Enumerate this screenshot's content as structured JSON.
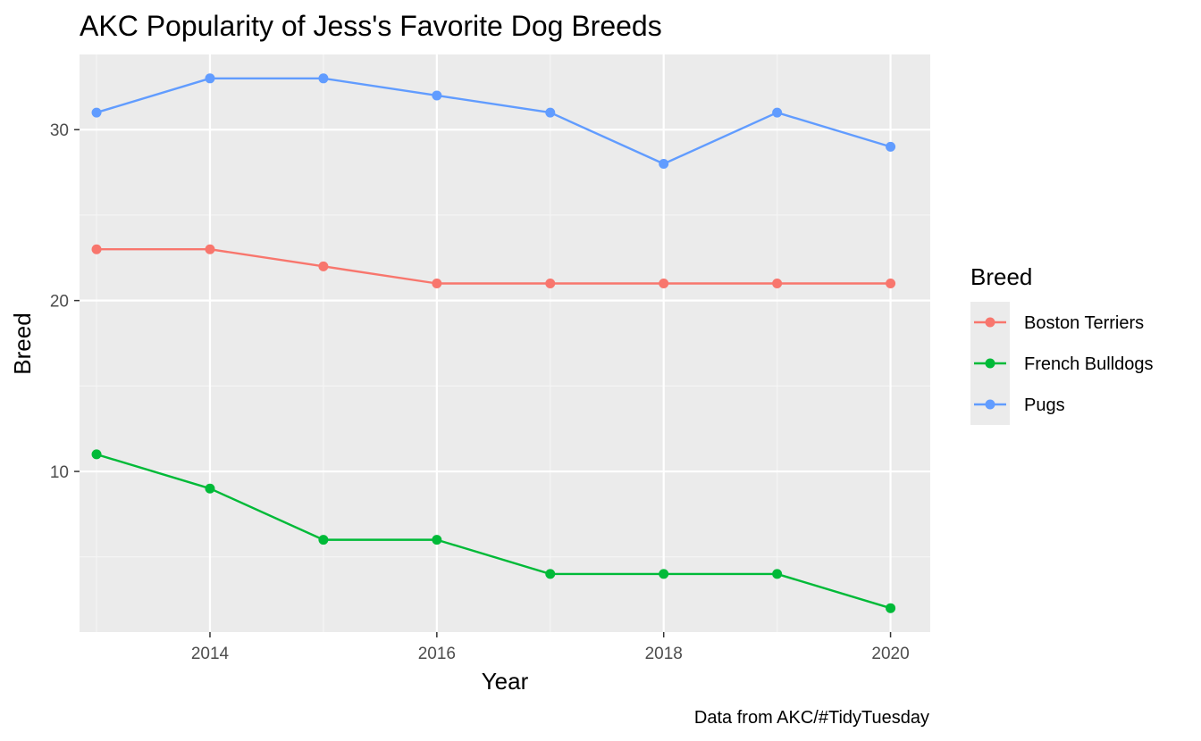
{
  "chart_data": {
    "type": "line",
    "title": "AKC Popularity of Jess's Favorite Dog Breeds",
    "xlabel": "Year",
    "ylabel": "Breed",
    "caption": "Data from AKC/#TidyTuesday",
    "x": [
      2013,
      2014,
      2015,
      2016,
      2017,
      2018,
      2019,
      2020
    ],
    "xlim": [
      2012.85,
      2020.35
    ],
    "ylim": [
      0.6,
      34.4
    ],
    "x_ticks": [
      2014,
      2016,
      2018,
      2020
    ],
    "y_ticks": [
      10,
      20,
      30
    ],
    "x_tick_labels": [
      "2014",
      "2016",
      "2018",
      "2020"
    ],
    "y_tick_labels": [
      "10",
      "20",
      "30"
    ],
    "grid": true,
    "legend": {
      "title": "Breed",
      "placement": "right"
    },
    "series": [
      {
        "name": "Boston Terriers",
        "color": "#F8766D",
        "values": [
          23,
          23,
          22,
          21,
          21,
          21,
          21,
          21
        ]
      },
      {
        "name": "French Bulldogs",
        "color": "#00BA38",
        "values": [
          11,
          9,
          6,
          6,
          4,
          4,
          4,
          2
        ]
      },
      {
        "name": "Pugs",
        "color": "#619CFF",
        "values": [
          31,
          33,
          33,
          32,
          31,
          28,
          31,
          29
        ]
      }
    ]
  },
  "colors": {
    "panel_background": "#EBEBEB",
    "grid_major": "#FFFFFF",
    "grid_minor": "#F5F5F5",
    "tick_text": "#4D4D4D",
    "legend_key_background": "#EBEBEB"
  }
}
